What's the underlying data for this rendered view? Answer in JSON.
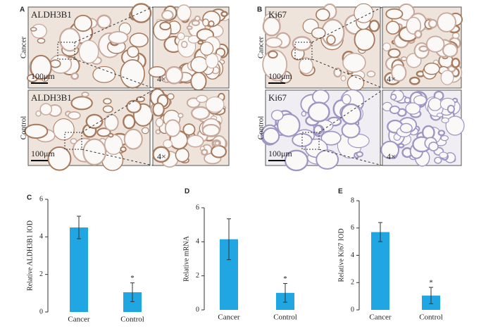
{
  "panels": [
    {
      "label": "A",
      "rows": [
        {
          "row_label": "Cancer",
          "stain": "ALDH3B1",
          "scale": "100μm",
          "zoom": "4×"
        },
        {
          "row_label": "Control",
          "stain": "ALDH3B1",
          "scale": "100μm",
          "zoom": "4×"
        }
      ]
    },
    {
      "label": "B",
      "rows": [
        {
          "row_label": "Cancer",
          "stain": "Ki67",
          "scale": "100μm",
          "zoom": "4×"
        },
        {
          "row_label": "Control",
          "stain": "Ki67",
          "scale": "100μm",
          "zoom": "4×"
        }
      ]
    }
  ],
  "chart_data": [
    {
      "type": "bar",
      "panel_label": "C",
      "y_label": "Relative ALDH3B1 IOD",
      "categories": [
        "Cancer",
        "Control"
      ],
      "values": [
        4.5,
        1.05
      ],
      "errors": [
        0.6,
        0.5
      ],
      "significance": [
        null,
        "*"
      ],
      "color": "#1fa6e3",
      "ylim": [
        0,
        6
      ],
      "yticks": [
        0,
        2,
        4,
        6
      ]
    },
    {
      "type": "bar",
      "panel_label": "D",
      "y_label": "Relative mRNA",
      "categories": [
        "Cancer",
        "Control"
      ],
      "values": [
        4.15,
        1.0
      ],
      "errors": [
        1.2,
        0.55
      ],
      "significance": [
        null,
        "*"
      ],
      "color": "#1fa6e3",
      "ylim": [
        0,
        6
      ],
      "yticks": [
        0,
        2,
        4,
        6
      ]
    },
    {
      "type": "bar",
      "panel_label": "E",
      "y_label": "Relative Ki67 IOD",
      "categories": [
        "Cancer",
        "Control"
      ],
      "values": [
        5.7,
        1.05
      ],
      "errors": [
        0.7,
        0.6
      ],
      "significance": [
        null,
        "*"
      ],
      "color": "#1fa6e3",
      "ylim": [
        0,
        8
      ],
      "yticks": [
        0,
        2,
        4,
        6,
        8
      ]
    }
  ]
}
